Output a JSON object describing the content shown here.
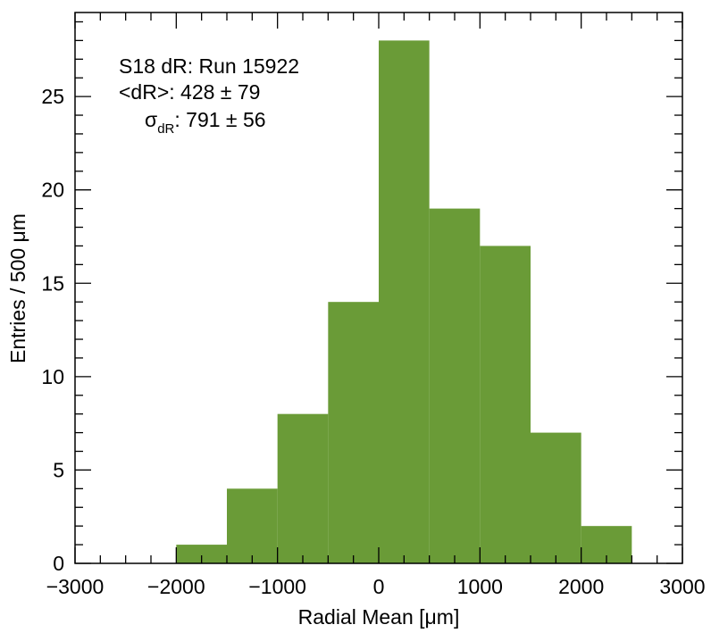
{
  "chart_data": {
    "type": "bar",
    "bin_edges": [
      -2000,
      -1500,
      -1000,
      -500,
      0,
      500,
      1000,
      1500,
      2000,
      2500
    ],
    "values": [
      1,
      4,
      8,
      14,
      28,
      19,
      17,
      7,
      2
    ],
    "xlabel": "Radial Mean [μm]",
    "ylabel": "Entries / 500 μm",
    "xlim": [
      -3000,
      3000
    ],
    "ylim": [
      0,
      29.5
    ],
    "x_ticks": [
      -3000,
      -2000,
      -1000,
      0,
      1000,
      2000,
      3000
    ],
    "x_tick_labels": [
      "−3000",
      "−2000",
      "−1000",
      "0",
      "1000",
      "2000",
      "3000"
    ],
    "y_ticks": [
      0,
      5,
      10,
      15,
      20,
      25
    ],
    "y_tick_labels": [
      "0",
      "5",
      "10",
      "15",
      "20",
      "25"
    ],
    "bar_color": "#6a9b37",
    "grid": false,
    "legend": "none",
    "annotations": {
      "line1": "S18 dR: Run 15922",
      "line2": "<dR>: 428 ± 79",
      "line3_symbol": "σ",
      "line3_subscript": "dR",
      "line3_value": ": 791 ± 56"
    }
  }
}
